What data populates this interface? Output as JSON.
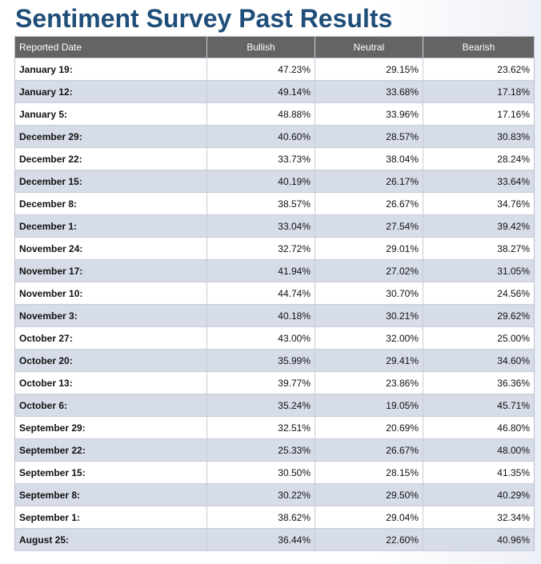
{
  "page": {
    "title": "Sentiment Survey Past Results"
  },
  "table": {
    "headers": {
      "date": "Reported Date",
      "bullish": "Bullish",
      "neutral": "Neutral",
      "bearish": "Bearish"
    },
    "rows": [
      {
        "date": "January 19:",
        "bullish": "47.23%",
        "neutral": "29.15%",
        "bearish": "23.62%"
      },
      {
        "date": "January 12:",
        "bullish": "49.14%",
        "neutral": "33.68%",
        "bearish": "17.18%"
      },
      {
        "date": "January 5:",
        "bullish": "48.88%",
        "neutral": "33.96%",
        "bearish": "17.16%"
      },
      {
        "date": "December 29:",
        "bullish": "40.60%",
        "neutral": "28.57%",
        "bearish": "30.83%"
      },
      {
        "date": "December 22:",
        "bullish": "33.73%",
        "neutral": "38.04%",
        "bearish": "28.24%"
      },
      {
        "date": "December 15:",
        "bullish": "40.19%",
        "neutral": "26.17%",
        "bearish": "33.64%"
      },
      {
        "date": "December 8:",
        "bullish": "38.57%",
        "neutral": "26.67%",
        "bearish": "34.76%"
      },
      {
        "date": "December 1:",
        "bullish": "33.04%",
        "neutral": "27.54%",
        "bearish": "39.42%"
      },
      {
        "date": "November 24:",
        "bullish": "32.72%",
        "neutral": "29.01%",
        "bearish": "38.27%"
      },
      {
        "date": "November 17:",
        "bullish": "41.94%",
        "neutral": "27.02%",
        "bearish": "31.05%"
      },
      {
        "date": "November 10:",
        "bullish": "44.74%",
        "neutral": "30.70%",
        "bearish": "24.56%"
      },
      {
        "date": "November 3:",
        "bullish": "40.18%",
        "neutral": "30.21%",
        "bearish": "29.62%"
      },
      {
        "date": "October 27:",
        "bullish": "43.00%",
        "neutral": "32.00%",
        "bearish": "25.00%"
      },
      {
        "date": "October 20:",
        "bullish": "35.99%",
        "neutral": "29.41%",
        "bearish": "34.60%"
      },
      {
        "date": "October 13:",
        "bullish": "39.77%",
        "neutral": "23.86%",
        "bearish": "36.36%"
      },
      {
        "date": "October 6:",
        "bullish": "35.24%",
        "neutral": "19.05%",
        "bearish": "45.71%"
      },
      {
        "date": "September 29:",
        "bullish": "32.51%",
        "neutral": "20.69%",
        "bearish": "46.80%"
      },
      {
        "date": "September 22:",
        "bullish": "25.33%",
        "neutral": "26.67%",
        "bearish": "48.00%"
      },
      {
        "date": "September 15:",
        "bullish": "30.50%",
        "neutral": "28.15%",
        "bearish": "41.35%"
      },
      {
        "date": "September 8:",
        "bullish": "30.22%",
        "neutral": "29.50%",
        "bearish": "40.29%"
      },
      {
        "date": "September 1:",
        "bullish": "38.62%",
        "neutral": "29.04%",
        "bearish": "32.34%"
      },
      {
        "date": "August 25:",
        "bullish": "36.44%",
        "neutral": "22.60%",
        "bearish": "40.96%"
      }
    ]
  },
  "colors": {
    "title": "#1f4e79",
    "header_bg": "#646464",
    "row_alt_bg": "#d6dce8"
  }
}
